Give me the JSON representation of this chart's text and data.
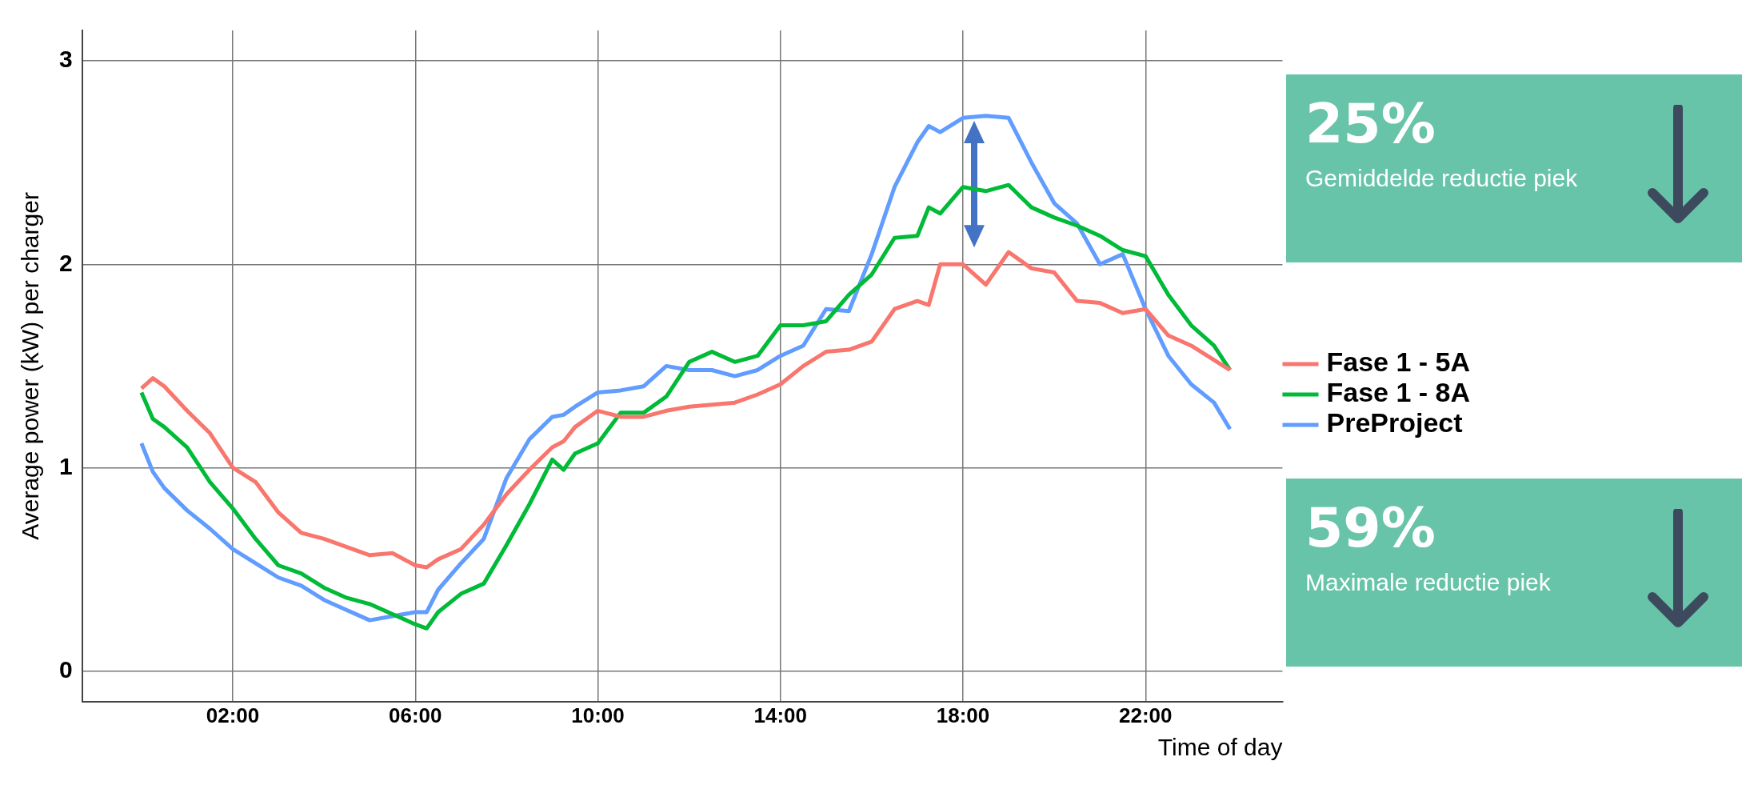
{
  "chart_data": {
    "type": "line",
    "xlabel": "Time of day",
    "ylabel": "Average power (kW) per charger",
    "x": [
      0,
      0.25,
      0.5,
      1,
      1.5,
      2,
      2.5,
      3,
      3.5,
      4,
      4.5,
      5,
      5.5,
      6,
      6.25,
      6.5,
      7,
      7.5,
      8,
      8.5,
      9,
      9.25,
      9.5,
      10,
      10.5,
      11,
      11.5,
      12,
      12.5,
      13,
      13.5,
      14,
      14.5,
      15,
      15.5,
      16,
      16.5,
      17,
      17.25,
      17.5,
      18,
      18.5,
      19,
      19.5,
      20,
      20.5,
      21,
      21.5,
      22,
      22.5,
      23,
      23.5,
      23.85
    ],
    "series": [
      {
        "name": "Fase 1 - 5A",
        "color": "#f8766d",
        "values": [
          1.39,
          1.44,
          1.4,
          1.28,
          1.17,
          1.0,
          0.93,
          0.78,
          0.68,
          0.65,
          0.61,
          0.57,
          0.58,
          0.52,
          0.51,
          0.55,
          0.6,
          0.72,
          0.87,
          0.99,
          1.1,
          1.13,
          1.2,
          1.28,
          1.25,
          1.25,
          1.28,
          1.3,
          1.31,
          1.32,
          1.36,
          1.41,
          1.5,
          1.57,
          1.58,
          1.62,
          1.78,
          1.82,
          1.8,
          2.0,
          2.0,
          1.9,
          2.06,
          1.98,
          1.96,
          1.82,
          1.81,
          1.76,
          1.78,
          1.65,
          1.6,
          1.53,
          1.48
        ]
      },
      {
        "name": "Fase 1 - 8A",
        "color": "#00ba38",
        "values": [
          1.37,
          1.24,
          1.2,
          1.1,
          0.93,
          0.8,
          0.65,
          0.52,
          0.48,
          0.41,
          0.36,
          0.33,
          0.28,
          0.23,
          0.21,
          0.29,
          0.38,
          0.43,
          0.62,
          0.82,
          1.04,
          0.99,
          1.07,
          1.12,
          1.27,
          1.27,
          1.35,
          1.52,
          1.57,
          1.52,
          1.55,
          1.7,
          1.7,
          1.72,
          1.85,
          1.95,
          2.13,
          2.14,
          2.28,
          2.25,
          2.38,
          2.36,
          2.39,
          2.28,
          2.23,
          2.19,
          2.14,
          2.07,
          2.04,
          1.85,
          1.7,
          1.6,
          1.48
        ]
      },
      {
        "name": "PreProject",
        "color": "#619cff",
        "values": [
          1.12,
          0.98,
          0.9,
          0.79,
          0.7,
          0.6,
          0.53,
          0.46,
          0.42,
          0.35,
          0.3,
          0.25,
          0.27,
          0.29,
          0.29,
          0.4,
          0.53,
          0.65,
          0.95,
          1.14,
          1.25,
          1.26,
          1.3,
          1.37,
          1.38,
          1.4,
          1.5,
          1.48,
          1.48,
          1.45,
          1.48,
          1.55,
          1.6,
          1.78,
          1.77,
          2.05,
          2.38,
          2.6,
          2.68,
          2.65,
          2.72,
          2.73,
          2.72,
          2.5,
          2.3,
          2.2,
          2.0,
          2.05,
          1.78,
          1.55,
          1.41,
          1.32,
          1.19
        ]
      }
    ],
    "xlim": [
      -1.3,
      25
    ],
    "ylim": [
      -0.15,
      3.15
    ],
    "xticks": [
      {
        "value": 2,
        "label": "02:00"
      },
      {
        "value": 6,
        "label": "06:00"
      },
      {
        "value": 10,
        "label": "10:00"
      },
      {
        "value": 14,
        "label": "14:00"
      },
      {
        "value": 18,
        "label": "18:00"
      },
      {
        "value": 22,
        "label": "22:00"
      }
    ],
    "yticks": [
      0,
      1,
      2,
      3
    ],
    "grid": true,
    "legend": "right",
    "marker": "none",
    "line_style": "solid",
    "annotations": [
      "25%",
      "Gemiddelde reductie piek",
      "59%",
      "Maximale reductie piek"
    ]
  }
}
